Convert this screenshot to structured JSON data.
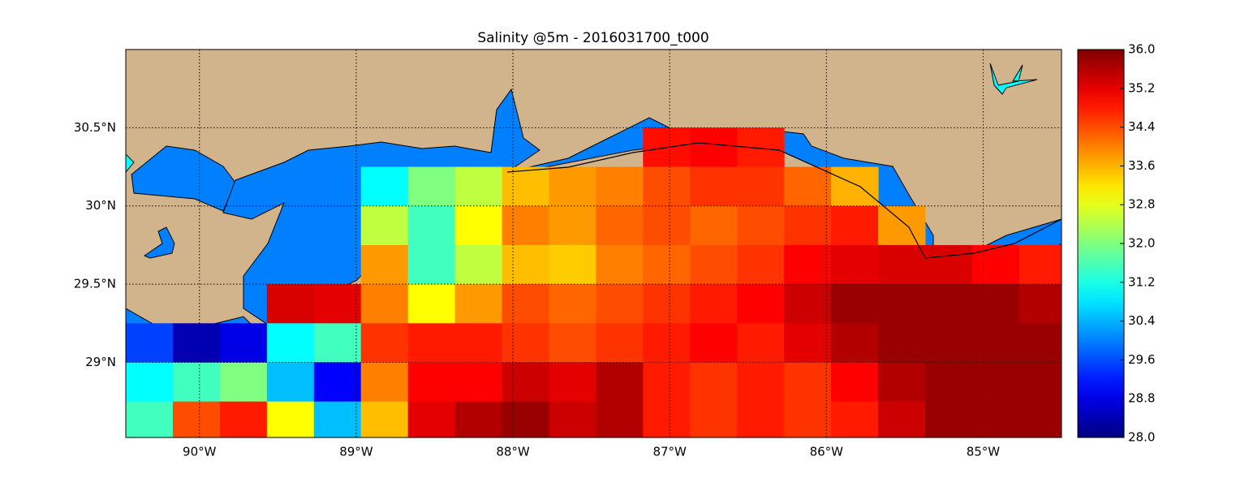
{
  "chart_data": {
    "type": "heatmap",
    "title": "Salinity @5m - 2016031700_t000",
    "colormap": "jet",
    "clim": [
      28,
      36
    ],
    "cticks": [
      {
        "value": 28,
        "label": "28.0"
      },
      28.8,
      29.6,
      30.4,
      31.2,
      {
        "value": 32,
        "label": "32.0"
      },
      32.8,
      33.6,
      34.4,
      35.2,
      {
        "value": 36,
        "label": "36.0"
      }
    ],
    "xlim": [
      -90.47,
      -84.5
    ],
    "ylim": [
      28.52,
      31.0
    ],
    "xticks": [
      {
        "value": -90,
        "label": "90°W"
      },
      {
        "value": -89,
        "label": "89°W"
      },
      {
        "value": -88,
        "label": "88°W"
      },
      {
        "value": -87,
        "label": "87°W"
      },
      {
        "value": -86,
        "label": "86°W"
      },
      {
        "value": -85,
        "label": "85°W"
      }
    ],
    "yticks": [
      {
        "value": 29,
        "label": "29°N"
      },
      {
        "value": 29.5,
        "label": "29.5°N"
      },
      {
        "value": 30,
        "label": "30°N"
      },
      {
        "value": 30.5,
        "label": "30.5°N"
      }
    ],
    "grid": true,
    "x": [
      -90.32,
      -90.02,
      -89.72,
      -89.42,
      -89.12,
      -88.82,
      -88.52,
      -88.22,
      -87.92,
      -87.62,
      -87.32,
      -87.02,
      -86.72,
      -86.42,
      -86.12,
      -85.82,
      -85.52,
      -85.22,
      -84.92,
      -84.62
    ],
    "y": [
      30.875,
      30.625,
      30.375,
      30.125,
      29.875,
      29.625,
      29.375,
      29.125,
      28.875,
      28.625
    ],
    "values": [
      [
        null,
        null,
        null,
        null,
        null,
        null,
        null,
        null,
        null,
        null,
        null,
        null,
        null,
        null,
        null,
        null,
        null,
        null,
        null,
        null
      ],
      [
        null,
        null,
        null,
        null,
        null,
        null,
        null,
        null,
        null,
        null,
        null,
        null,
        null,
        null,
        null,
        null,
        null,
        null,
        null,
        null
      ],
      [
        null,
        null,
        null,
        null,
        null,
        null,
        null,
        null,
        null,
        null,
        null,
        34.9,
        35.0,
        34.8,
        null,
        null,
        null,
        null,
        null,
        null
      ],
      [
        null,
        null,
        null,
        null,
        null,
        31.0,
        32.0,
        32.5,
        33.5,
        33.8,
        34.0,
        34.4,
        34.6,
        34.6,
        34.2,
        33.6,
        null,
        null,
        null,
        null
      ],
      [
        null,
        null,
        null,
        null,
        null,
        32.5,
        31.5,
        33.0,
        34.0,
        33.8,
        34.2,
        34.4,
        34.2,
        34.4,
        34.6,
        34.8,
        33.8,
        null,
        null,
        null
      ],
      [
        null,
        null,
        null,
        null,
        null,
        33.8,
        31.5,
        32.5,
        33.5,
        33.4,
        34.0,
        34.2,
        34.4,
        34.6,
        35.0,
        35.2,
        35.3,
        35.3,
        35.0,
        34.8
      ],
      [
        null,
        null,
        null,
        35.3,
        35.2,
        34.0,
        33.0,
        33.8,
        34.4,
        34.2,
        34.4,
        34.6,
        34.8,
        35.0,
        35.4,
        35.8,
        35.8,
        35.8,
        35.8,
        35.6
      ],
      [
        29.5,
        28.4,
        28.8,
        31.0,
        31.5,
        34.6,
        34.8,
        34.8,
        34.6,
        34.4,
        34.6,
        34.8,
        35.0,
        34.8,
        35.2,
        35.6,
        35.8,
        35.8,
        35.8,
        35.8
      ],
      [
        31.0,
        31.5,
        32.0,
        30.5,
        29.0,
        34.0,
        35.0,
        35.0,
        35.4,
        35.2,
        35.6,
        34.8,
        34.6,
        34.8,
        34.6,
        35.0,
        35.6,
        35.8,
        35.8,
        35.8
      ],
      [
        31.5,
        34.4,
        34.8,
        33.0,
        30.5,
        33.5,
        35.2,
        35.6,
        35.8,
        35.4,
        35.6,
        34.8,
        34.6,
        34.8,
        34.6,
        34.8,
        35.4,
        35.8,
        35.8,
        35.8
      ]
    ]
  }
}
